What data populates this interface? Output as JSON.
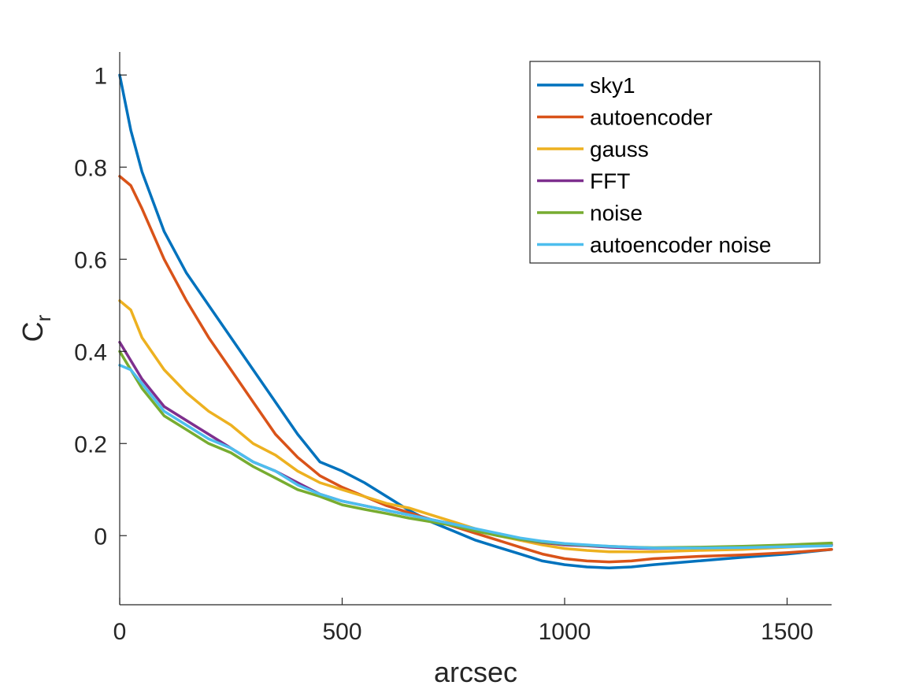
{
  "chart_data": {
    "type": "line",
    "title": "",
    "xlabel": "arcsec",
    "ylabel": "C",
    "ylabel_sub": "r",
    "xlim": [
      0,
      1600
    ],
    "ylim": [
      -0.15,
      1.05
    ],
    "xticks": [
      0,
      500,
      1000,
      1500
    ],
    "xtick_labels": [
      "0",
      "500",
      "1000",
      "1500"
    ],
    "yticks": [
      0,
      0.2,
      0.4,
      0.6,
      0.8,
      1
    ],
    "ytick_labels": [
      "0",
      "0.2",
      "0.4",
      "0.6",
      "0.8",
      "1"
    ],
    "grid": false,
    "legend_position": "top-right",
    "x": [
      0,
      25,
      50,
      100,
      150,
      200,
      250,
      300,
      350,
      400,
      450,
      500,
      550,
      600,
      650,
      700,
      750,
      800,
      850,
      900,
      950,
      1000,
      1050,
      1100,
      1150,
      1200,
      1300,
      1400,
      1500,
      1600
    ],
    "series": [
      {
        "name": "sky1",
        "color": "#0072BD",
        "values": [
          1.0,
          0.88,
          0.79,
          0.66,
          0.57,
          0.5,
          0.43,
          0.36,
          0.29,
          0.22,
          0.16,
          0.14,
          0.115,
          0.085,
          0.055,
          0.03,
          0.01,
          -0.01,
          -0.025,
          -0.04,
          -0.055,
          -0.063,
          -0.068,
          -0.07,
          -0.068,
          -0.063,
          -0.055,
          -0.047,
          -0.04,
          -0.03
        ]
      },
      {
        "name": "autoencoder",
        "color": "#D95319",
        "values": [
          0.78,
          0.76,
          0.71,
          0.6,
          0.51,
          0.43,
          0.36,
          0.29,
          0.22,
          0.17,
          0.13,
          0.105,
          0.085,
          0.065,
          0.05,
          0.035,
          0.02,
          0.005,
          -0.01,
          -0.025,
          -0.04,
          -0.05,
          -0.055,
          -0.057,
          -0.055,
          -0.05,
          -0.045,
          -0.042,
          -0.037,
          -0.03
        ]
      },
      {
        "name": "gauss",
        "color": "#EDB120",
        "values": [
          0.51,
          0.49,
          0.43,
          0.36,
          0.31,
          0.27,
          0.24,
          0.2,
          0.175,
          0.14,
          0.115,
          0.1,
          0.085,
          0.07,
          0.06,
          0.045,
          0.03,
          0.015,
          0.0,
          -0.01,
          -0.02,
          -0.028,
          -0.032,
          -0.035,
          -0.035,
          -0.035,
          -0.032,
          -0.03,
          -0.025,
          -0.02
        ]
      },
      {
        "name": "FFT",
        "color": "#7E2F8E",
        "values": [
          0.42,
          0.38,
          0.34,
          0.28,
          0.25,
          0.22,
          0.19,
          0.16,
          0.14,
          0.115,
          0.09,
          0.075,
          0.065,
          0.055,
          0.045,
          0.035,
          0.025,
          0.012,
          0.002,
          -0.008,
          -0.015,
          -0.02,
          -0.022,
          -0.025,
          -0.027,
          -0.028,
          -0.026,
          -0.025,
          -0.023,
          -0.02
        ]
      },
      {
        "name": "noise",
        "color": "#77AC30",
        "values": [
          0.4,
          0.36,
          0.32,
          0.26,
          0.23,
          0.2,
          0.18,
          0.15,
          0.125,
          0.1,
          0.085,
          0.067,
          0.057,
          0.048,
          0.038,
          0.03,
          0.022,
          0.01,
          0.0,
          -0.008,
          -0.014,
          -0.018,
          -0.021,
          -0.023,
          -0.025,
          -0.026,
          -0.025,
          -0.023,
          -0.02,
          -0.016
        ]
      },
      {
        "name": "autoencoder noise",
        "color": "#4DBEEE",
        "values": [
          0.37,
          0.36,
          0.33,
          0.27,
          0.24,
          0.21,
          0.19,
          0.16,
          0.14,
          0.11,
          0.09,
          0.075,
          0.065,
          0.055,
          0.045,
          0.035,
          0.025,
          0.015,
          0.005,
          -0.005,
          -0.012,
          -0.017,
          -0.02,
          -0.023,
          -0.025,
          -0.027,
          -0.027,
          -0.026,
          -0.024,
          -0.022
        ]
      }
    ]
  }
}
